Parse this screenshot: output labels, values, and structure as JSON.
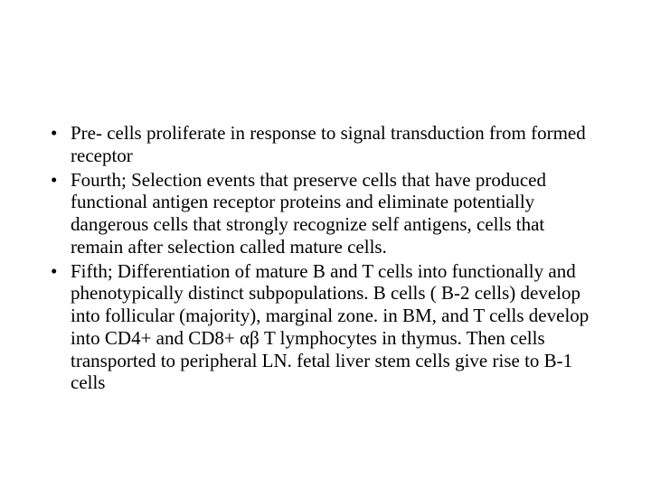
{
  "text_color": "#000000",
  "background_color": "#ffffff",
  "font_family": "Times New Roman",
  "font_size_pt": 16,
  "bullets": [
    "Pre- cells proliferate in response to signal transduction from formed receptor",
    "Fourth; Selection events that preserve cells that have produced functional antigen receptor proteins and eliminate potentially dangerous cells that strongly recognize self antigens, cells that remain after selection called mature cells.",
    "Fifth; Differentiation of  mature B and T cells into functionally and phenotypically distinct subpopulations. B cells ( B-2 cells) develop into follicular (majority), marginal zone.  in BM, and T cells develop into CD4+ and CD8+ αβ T lymphocytes in thymus. Then cells transported to peripheral LN. fetal liver stem cells give rise to  B-1 cells"
  ]
}
